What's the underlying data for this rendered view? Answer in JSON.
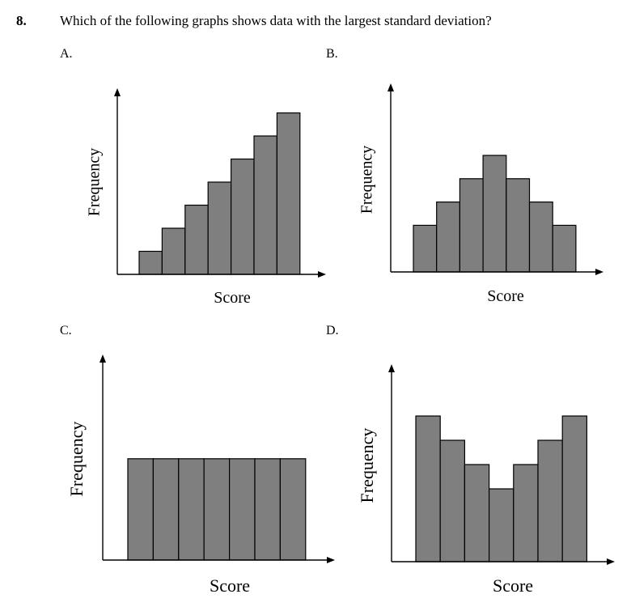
{
  "question": {
    "number": "8.",
    "text": "Which of the following graphs shows data with the largest standard deviation?"
  },
  "colors": {
    "bar_fill": "#7f7f7f",
    "bar_stroke": "#000000",
    "axis": "#000000"
  },
  "chart_data": [
    {
      "option": "A.",
      "type": "bar",
      "xlabel": "Score",
      "ylabel": "Frequency",
      "values": [
        1,
        2,
        3,
        4,
        5,
        6,
        7
      ],
      "ylim": [
        0,
        8
      ],
      "grid": false
    },
    {
      "option": "B.",
      "type": "bar",
      "xlabel": "Score",
      "ylabel": "Frequency",
      "values": [
        2,
        3,
        4,
        5,
        4,
        3,
        2
      ],
      "ylim": [
        0,
        8
      ],
      "grid": false
    },
    {
      "option": "C.",
      "type": "bar",
      "xlabel": "Score",
      "ylabel": "Frequency",
      "values": [
        4,
        4,
        4,
        4,
        4,
        4,
        4
      ],
      "ylim": [
        0,
        8
      ],
      "grid": false
    },
    {
      "option": "D.",
      "type": "bar",
      "xlabel": "Score",
      "ylabel": "Frequency",
      "values": [
        6,
        5,
        4,
        3,
        4,
        5,
        6
      ],
      "ylim": [
        0,
        8
      ],
      "grid": false
    }
  ]
}
